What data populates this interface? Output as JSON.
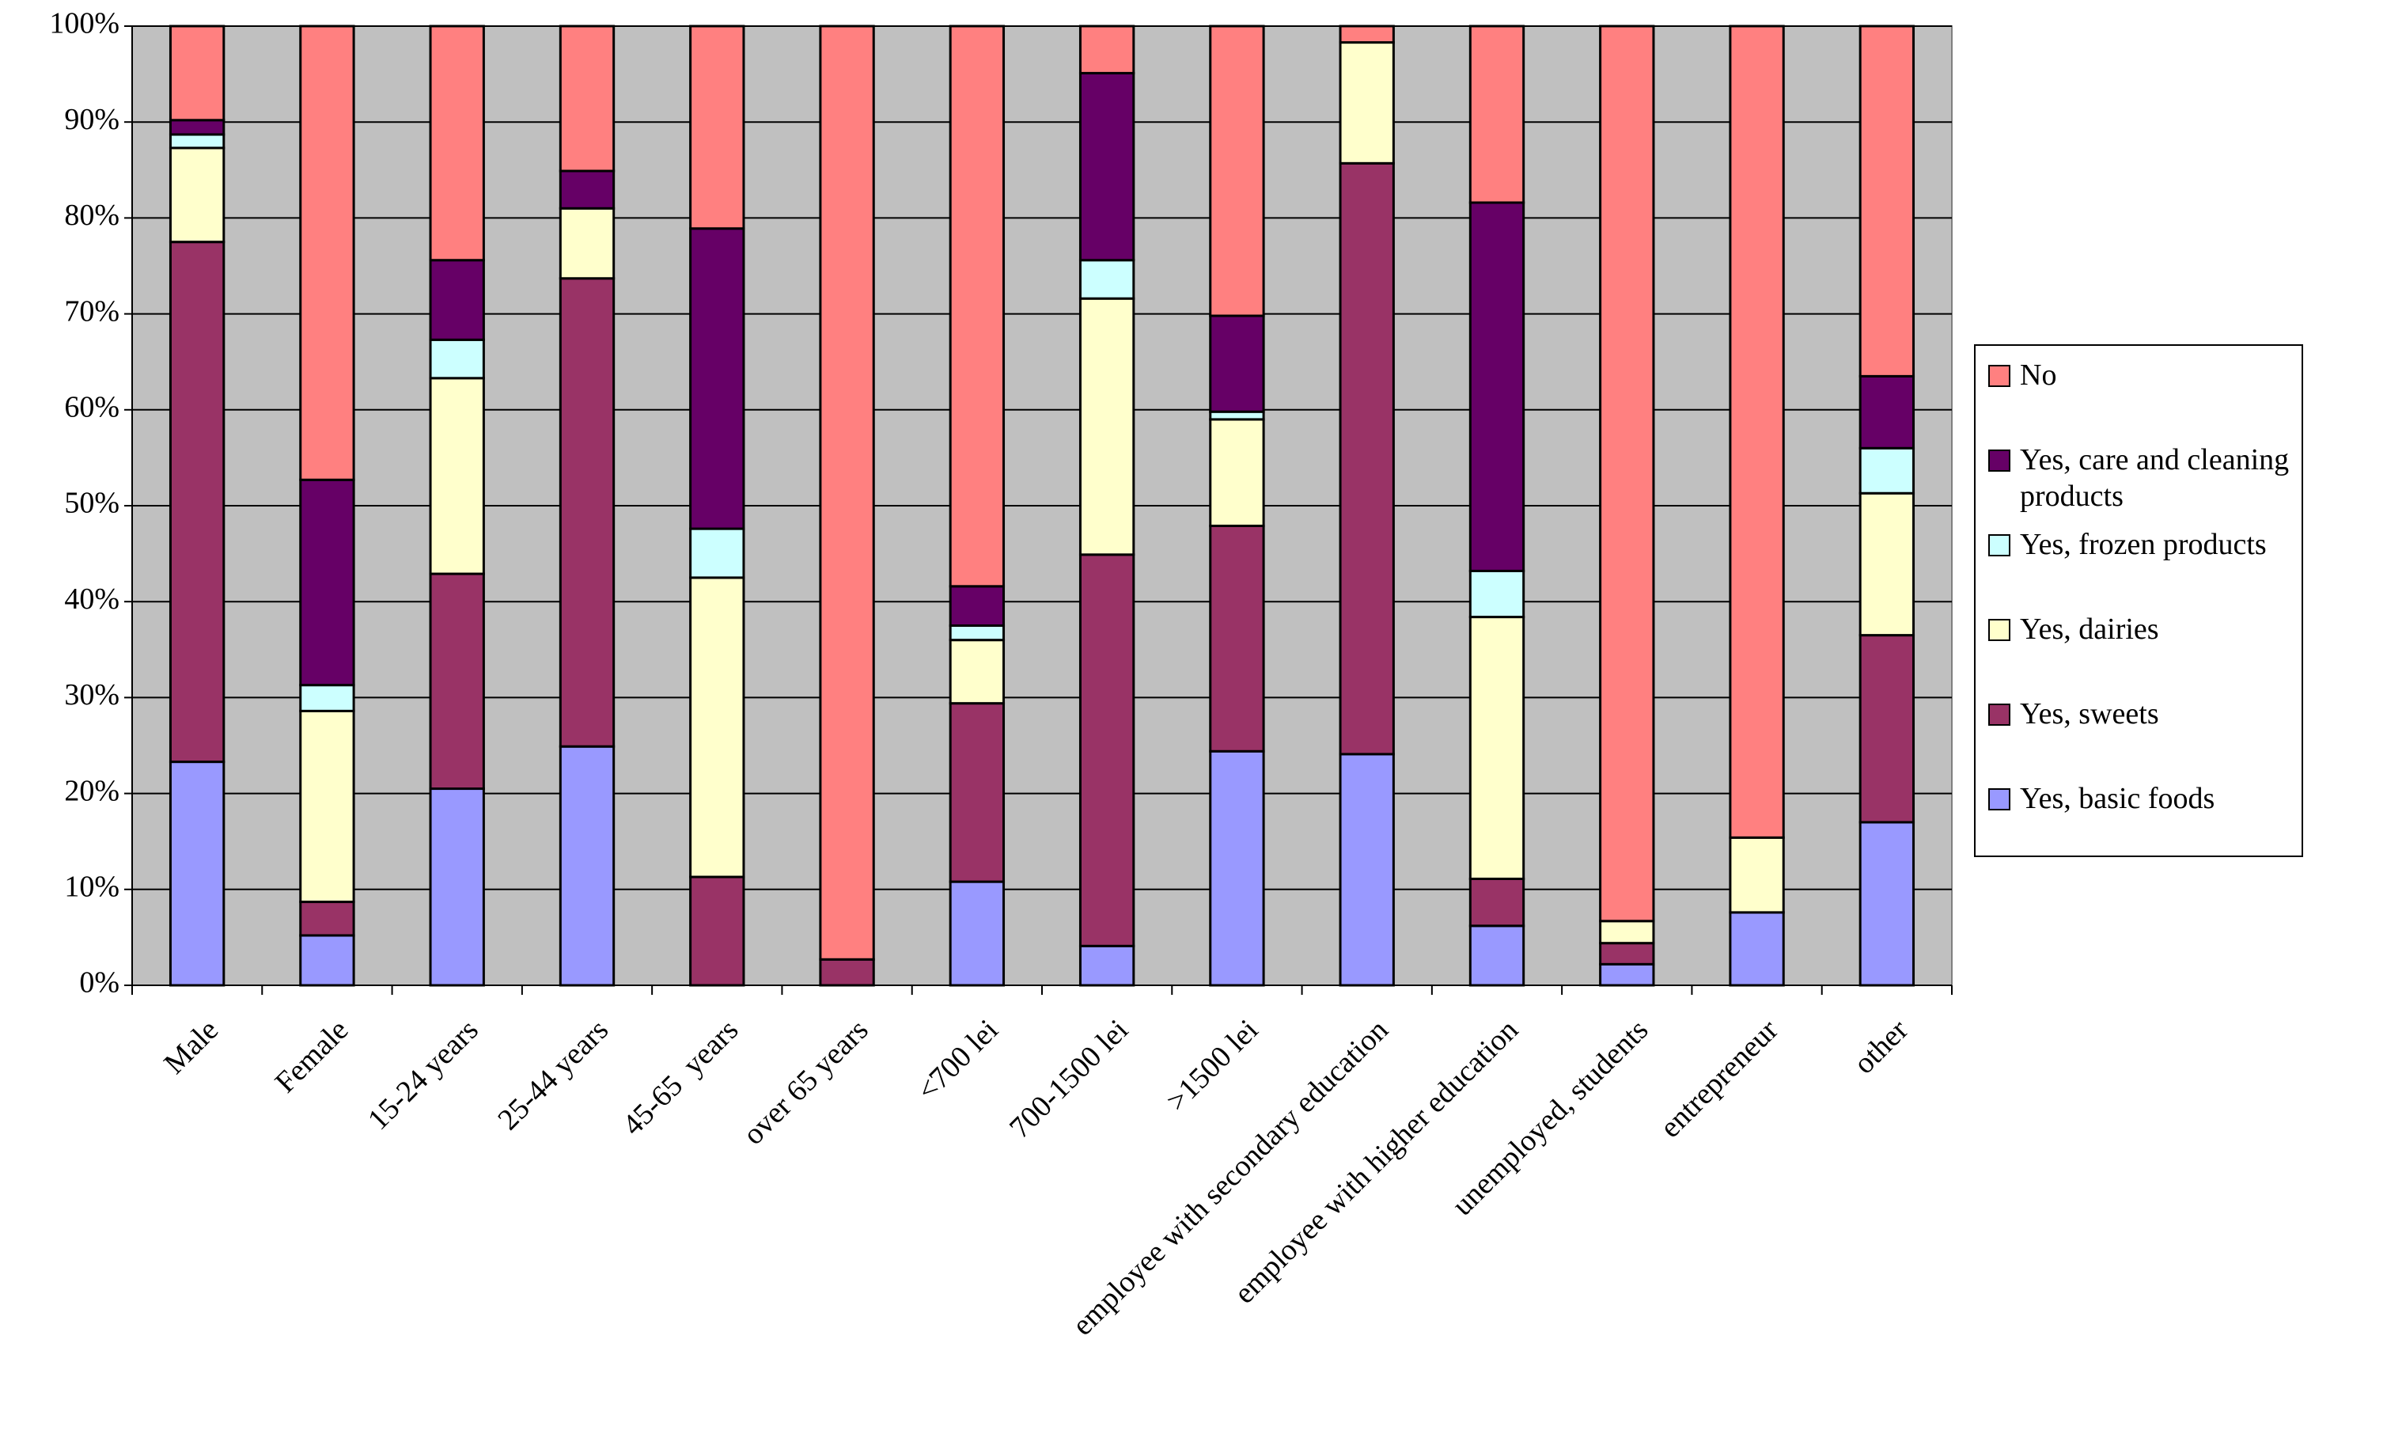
{
  "chart_data": {
    "type": "stacked-bar",
    "categories": [
      "Male",
      "Female",
      "15-24 years",
      "25-44 years",
      "45-65  years",
      "over 65 years",
      "<700 lei",
      "700-1500 lei",
      ">1500 lei",
      "employee with secondary education",
      "employee with higher education",
      "unemployed, students",
      "entrepreneur",
      "other"
    ],
    "series": [
      {
        "name": "Yes, basic foods",
        "color": "#9999ff",
        "values": [
          23.3,
          5.2,
          20.5,
          24.9,
          0,
          0,
          10.8,
          4.1,
          24.4,
          24.1,
          6.2,
          2.2,
          7.6,
          17.0
        ]
      },
      {
        "name": "Yes, sweets",
        "color": "#993366",
        "values": [
          54.2,
          3.5,
          22.4,
          48.8,
          11.3,
          2.7,
          18.6,
          40.8,
          23.5,
          61.6,
          4.9,
          2.2,
          0,
          19.5
        ]
      },
      {
        "name": "Yes, dairies",
        "color": "#ffffcc",
        "values": [
          9.8,
          19.9,
          20.4,
          7.3,
          31.2,
          0,
          6.6,
          26.7,
          11.1,
          12.6,
          27.3,
          2.3,
          7.8,
          14.8
        ]
      },
      {
        "name": "Yes, frozen products",
        "color": "#ccffff",
        "values": [
          1.4,
          2.7,
          4.0,
          0,
          5.1,
          0,
          1.5,
          4.0,
          0.8,
          0,
          4.8,
          0,
          0,
          4.7
        ]
      },
      {
        "name": "Yes, care and cleaning products",
        "color": "#660066",
        "values": [
          1.5,
          21.4,
          8.3,
          3.9,
          31.3,
          0,
          4.1,
          19.5,
          10.0,
          0,
          38.4,
          0,
          0,
          7.5
        ]
      },
      {
        "name": "No",
        "color": "#ff8080",
        "values": [
          9.8,
          47.3,
          24.4,
          15.1,
          21.1,
          97.3,
          58.4,
          4.9,
          30.2,
          1.7,
          18.4,
          93.3,
          84.6,
          36.5
        ]
      }
    ],
    "ylim": [
      0,
      100
    ],
    "yticks": [
      {
        "value": 0,
        "label": "0%"
      },
      {
        "value": 10,
        "label": "10%"
      },
      {
        "value": 20,
        "label": "20%"
      },
      {
        "value": 30,
        "label": "30%"
      },
      {
        "value": 40,
        "label": "40%"
      },
      {
        "value": 50,
        "label": "50%"
      },
      {
        "value": 60,
        "label": "60%"
      },
      {
        "value": 70,
        "label": "70%"
      },
      {
        "value": 80,
        "label": "80%"
      },
      {
        "value": 90,
        "label": "90%"
      },
      {
        "value": 100,
        "label": "100%"
      }
    ],
    "grid": true,
    "legend": "right",
    "plot_background": "#c0c0c0"
  }
}
